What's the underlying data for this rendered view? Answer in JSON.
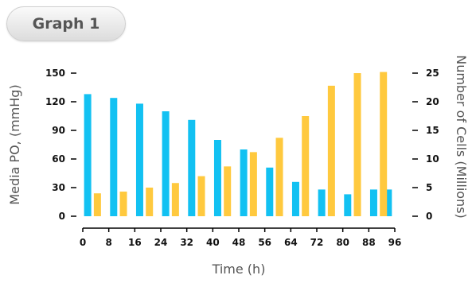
{
  "header": {
    "tab_label": "Graph 1"
  },
  "chart_data": {
    "type": "bar",
    "xlabel": "Time (h)",
    "ylabel_left": "Media PO, (mmHg)",
    "ylabel_right": "Number of Cells (Millions)",
    "x_ticks": [
      0,
      8,
      16,
      24,
      32,
      40,
      48,
      56,
      64,
      72,
      80,
      88,
      96
    ],
    "y_left_ticks": [
      0,
      30,
      60,
      90,
      120,
      150
    ],
    "y_right_ticks": [
      0,
      5,
      10,
      15,
      20,
      25
    ],
    "xlim": [
      0,
      96
    ],
    "ylim_left": [
      0,
      150
    ],
    "ylim_right": [
      0,
      25
    ],
    "series": [
      {
        "axis": "left",
        "color": "#12c1f2",
        "x": [
          1.5,
          9.5,
          17.5,
          25.5,
          33.5,
          41.5,
          49.5,
          57.5,
          65.5,
          73.5,
          81.5,
          89.5,
          94.0
        ],
        "values": [
          128,
          124,
          118,
          110,
          101,
          80,
          70,
          51,
          36,
          28,
          23,
          28,
          28
        ]
      },
      {
        "axis": "right",
        "color": "#ffc93e",
        "x": [
          4.5,
          12.5,
          20.5,
          28.5,
          36.5,
          44.5,
          52.5,
          60.5,
          68.5,
          76.5,
          84.5,
          92.5
        ],
        "values": [
          4.0,
          4.3,
          5.0,
          5.8,
          7.0,
          8.7,
          11.2,
          13.7,
          17.5,
          22.8,
          25.0,
          25.2
        ]
      }
    ]
  }
}
